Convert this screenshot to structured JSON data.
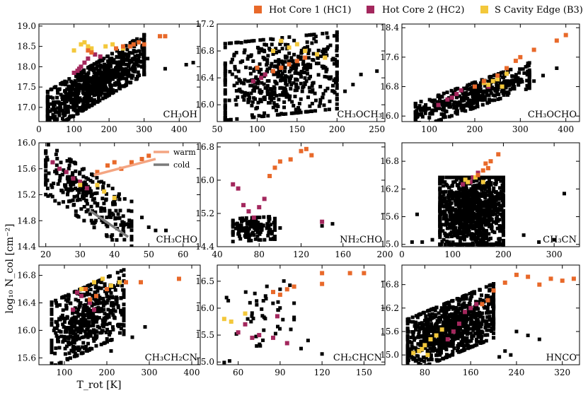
{
  "figure": {
    "ylabel": "log₁₀ N_col [cm⁻²]",
    "xlabel": "T_rot [K]",
    "legend": [
      {
        "label": "Hot Core 1 (HC1)",
        "color": "#e8692a"
      },
      {
        "label": "Hot Core 2 (HC2)",
        "color": "#a3275d"
      },
      {
        "label": "S Cavity Edge (B3)",
        "color": "#f3c83b"
      }
    ],
    "colors": {
      "bulk": "#000000",
      "hc1": "#e8692a",
      "hc2": "#a3275d",
      "b3": "#f3c83b",
      "warm": "#f4a582",
      "cold": "#7a7a7a"
    }
  },
  "chart_data": [
    {
      "type": "scatter",
      "label": "CH3OH",
      "sub": "CH₃OH",
      "xlim": [
        0,
        460
      ],
      "ylim": [
        16.65,
        19.05
      ],
      "xticks": [
        0,
        100,
        200,
        300,
        400
      ],
      "xticklabels": [
        "0",
        "100",
        "200",
        "300",
        "400"
      ],
      "yticks": [
        17.0,
        17.5,
        18.0,
        18.5,
        19.0
      ],
      "yticklabels": [
        "17.0",
        "17.5",
        "18.0",
        "18.5",
        "19.0"
      ],
      "bulk": {
        "n": 900,
        "x": [
          25,
          300
        ],
        "y": [
          16.75,
          18.45
        ],
        "corr": 0.82,
        "extra": [
          [
            420,
            18.05
          ],
          [
            440,
            18.1
          ],
          [
            360,
            17.95
          ],
          [
            310,
            18.2
          ]
        ]
      },
      "hc1": [
        [
          360,
          18.75
        ],
        [
          345,
          18.75
        ],
        [
          285,
          18.6
        ],
        [
          270,
          18.55
        ],
        [
          260,
          18.5
        ],
        [
          150,
          18.35
        ],
        [
          140,
          18.4
        ],
        [
          220,
          18.45
        ],
        [
          240,
          18.5
        ],
        [
          300,
          18.55
        ]
      ],
      "hc2": [
        [
          130,
          18.1
        ],
        [
          120,
          18.0
        ],
        [
          110,
          17.9
        ],
        [
          100,
          17.85
        ],
        [
          140,
          18.2
        ],
        [
          160,
          18.3
        ],
        [
          115,
          17.95
        ],
        [
          175,
          18.25
        ]
      ],
      "b3": [
        [
          120,
          18.55
        ],
        [
          130,
          18.6
        ],
        [
          210,
          18.55
        ],
        [
          100,
          18.4
        ],
        [
          150,
          18.45
        ],
        [
          140,
          18.5
        ],
        [
          190,
          18.5
        ],
        [
          240,
          18.45
        ]
      ]
    },
    {
      "type": "scatter",
      "label": "CH3OCH3",
      "sub": "CH₃OCH₃",
      "xlim": [
        50,
        260
      ],
      "ylim": [
        15.75,
        17.2
      ],
      "xticks": [
        50,
        100,
        150,
        200,
        250
      ],
      "xticklabels": [
        "50",
        "100",
        "150",
        "200",
        "250"
      ],
      "yticks": [
        16.0,
        16.4,
        16.8,
        17.2
      ],
      "yticklabels": [
        "16.0",
        "16.4",
        "16.8",
        "17.2"
      ],
      "bulk": {
        "n": 520,
        "x": [
          60,
          200
        ],
        "y": [
          15.85,
          17.0
        ],
        "corr": 0.15,
        "extra": [
          [
            210,
            16.2
          ],
          [
            230,
            16.45
          ],
          [
            250,
            16.5
          ],
          [
            220,
            16.3
          ]
        ]
      },
      "hc1": [
        [
          140,
          16.6
        ],
        [
          150,
          16.65
        ],
        [
          130,
          16.55
        ],
        [
          160,
          16.7
        ],
        [
          100,
          16.55
        ],
        [
          120,
          16.5
        ]
      ],
      "hc2": [
        [
          110,
          16.45
        ],
        [
          120,
          16.5
        ],
        [
          105,
          16.4
        ],
        [
          130,
          16.55
        ],
        [
          95,
          16.35
        ]
      ],
      "b3": [
        [
          130,
          16.95
        ],
        [
          140,
          16.85
        ],
        [
          160,
          16.8
        ],
        [
          175,
          16.75
        ],
        [
          150,
          16.9
        ],
        [
          120,
          16.8
        ],
        [
          185,
          16.7
        ]
      ]
    },
    {
      "type": "scatter",
      "label": "CH3OCHO",
      "sub": "CH₃OCHO",
      "xlim": [
        40,
        430
      ],
      "ylim": [
        15.85,
        18.5
      ],
      "xticks": [
        100,
        200,
        300,
        400
      ],
      "xticklabels": [
        "100",
        "200",
        "300",
        "400"
      ],
      "yticks": [
        16.0,
        16.8,
        17.6,
        18.4
      ],
      "yticklabels": [
        "16.0",
        "16.8",
        "17.6",
        "18.4"
      ],
      "bulk": {
        "n": 460,
        "x": [
          70,
          320
        ],
        "y": [
          15.9,
          17.2
        ],
        "corr": 0.85,
        "extra": [
          [
            380,
            17.3
          ],
          [
            350,
            17.1
          ],
          [
            330,
            16.95
          ]
        ]
      },
      "hc1": [
        [
          400,
          18.2
        ],
        [
          380,
          18.05
        ],
        [
          330,
          17.8
        ],
        [
          300,
          17.6
        ],
        [
          290,
          17.5
        ],
        [
          270,
          17.3
        ],
        [
          250,
          17.1
        ],
        [
          220,
          16.95
        ],
        [
          200,
          16.8
        ]
      ],
      "hc2": [
        [
          150,
          16.5
        ],
        [
          160,
          16.6
        ],
        [
          140,
          16.45
        ],
        [
          170,
          16.7
        ],
        [
          120,
          16.3
        ],
        [
          230,
          16.8
        ]
      ],
      "b3": [
        [
          220,
          16.9
        ],
        [
          240,
          16.95
        ],
        [
          250,
          17.0
        ],
        [
          270,
          17.15
        ],
        [
          230,
          16.85
        ],
        [
          260,
          16.8
        ]
      ]
    },
    {
      "type": "scatter",
      "label": "CH3CHO",
      "sub": "CH₃CHO",
      "xlim": [
        18,
        65
      ],
      "ylim": [
        14.4,
        16.0
      ],
      "xticks": [
        20,
        30,
        40,
        50,
        60
      ],
      "xticklabels": [
        "20",
        "30",
        "40",
        "50",
        "60"
      ],
      "yticks": [
        14.4,
        14.8,
        15.2,
        15.6,
        16.0
      ],
      "yticklabels": [
        "14.4",
        "14.8",
        "15.2",
        "15.6",
        "16.0"
      ],
      "bulk": {
        "n": 260,
        "x": [
          20,
          45
        ],
        "y": [
          14.55,
          15.75
        ],
        "corr": -0.75,
        "extra": [
          [
            50,
            14.7
          ],
          [
            52,
            14.65
          ],
          [
            55,
            14.65
          ],
          [
            48,
            14.85
          ],
          [
            44,
            14.75
          ]
        ]
      },
      "hc1": [
        [
          48,
          15.75
        ],
        [
          45,
          15.7
        ],
        [
          40,
          15.7
        ],
        [
          38,
          15.65
        ],
        [
          35,
          15.55
        ],
        [
          50,
          15.8
        ],
        [
          42,
          15.6
        ]
      ],
      "hc2": [
        [
          22,
          15.7
        ],
        [
          24,
          15.6
        ],
        [
          26,
          15.55
        ],
        [
          28,
          15.45
        ],
        [
          30,
          15.4
        ],
        [
          32,
          15.3
        ]
      ],
      "b3": [
        [
          37,
          15.25
        ],
        [
          40,
          15.15
        ],
        [
          35,
          15.35
        ],
        [
          30,
          15.35
        ]
      ],
      "lines": [
        {
          "name": "warm",
          "color": "#f4a582",
          "from": [
            34,
            15.5
          ],
          "to": [
            52,
            15.75
          ]
        },
        {
          "name": "cold",
          "color": "#7a7a7a",
          "from": [
            33,
            14.95
          ],
          "to": [
            44,
            14.55
          ]
        }
      ]
    },
    {
      "type": "scatter",
      "label": "NH2CHO",
      "sub": "NH₂CHO",
      "xlim": [
        40,
        200
      ],
      "ylim": [
        14.4,
        16.9
      ],
      "xticks": [
        40,
        80,
        120,
        160,
        200
      ],
      "xticklabels": [
        "40",
        "80",
        "120",
        "160",
        "200"
      ],
      "yticks": [
        14.4,
        15.2,
        16.0,
        16.8
      ],
      "yticklabels": [
        "14.4",
        "15.2",
        "16.0",
        "16.8"
      ],
      "bulk": {
        "n": 150,
        "x": [
          55,
          95
        ],
        "y": [
          14.55,
          15.1
        ],
        "corr": 0.1,
        "extra": [
          [
            140,
            14.9
          ],
          [
            150,
            14.95
          ],
          [
            100,
            14.85
          ]
        ]
      },
      "hc1": [
        [
          125,
          16.75
        ],
        [
          120,
          16.7
        ],
        [
          110,
          16.5
        ],
        [
          95,
          16.3
        ],
        [
          90,
          16.1
        ],
        [
          130,
          16.6
        ],
        [
          100,
          16.45
        ]
      ],
      "hc2": [
        [
          55,
          15.9
        ],
        [
          60,
          15.8
        ],
        [
          65,
          15.4
        ],
        [
          70,
          15.25
        ],
        [
          75,
          15.1
        ],
        [
          80,
          15.35
        ],
        [
          140,
          15.0
        ],
        [
          85,
          15.55
        ]
      ],
      "b3": []
    },
    {
      "type": "scatter",
      "label": "CH3CN",
      "sub": "CH₃CN",
      "xlim": [
        0,
        350
      ],
      "ylim": [
        14.95,
        17.2
      ],
      "xticks": [
        0,
        100,
        200,
        300
      ],
      "xticklabels": [
        "0",
        "100",
        "200",
        "300"
      ],
      "yticks": [
        15.0,
        15.6,
        16.2,
        16.8
      ],
      "yticklabels": [
        "15.0",
        "15.6",
        "16.2",
        "16.8"
      ],
      "bulk": {
        "n": 1100,
        "x": [
          75,
          200
        ],
        "y": [
          15.0,
          16.45
        ],
        "corr": 0.0,
        "extra": [
          [
            20,
            15.05
          ],
          [
            40,
            15.05
          ],
          [
            60,
            15.1
          ],
          [
            30,
            15.65
          ],
          [
            320,
            16.1
          ],
          [
            240,
            15.2
          ],
          [
            270,
            15.05
          ],
          [
            300,
            15.1
          ]
        ]
      },
      "hc1": [
        [
          190,
          16.95
        ],
        [
          175,
          16.8
        ],
        [
          165,
          16.75
        ],
        [
          160,
          16.6
        ],
        [
          150,
          16.5
        ],
        [
          170,
          16.65
        ]
      ],
      "hc2": [
        [
          140,
          16.45
        ],
        [
          135,
          16.35
        ],
        [
          120,
          16.3
        ],
        [
          150,
          16.55
        ]
      ],
      "b3": [
        [
          130,
          16.35
        ],
        [
          145,
          16.45
        ],
        [
          160,
          16.35
        ],
        [
          125,
          16.4
        ]
      ]
    },
    {
      "type": "scatter",
      "label": "CH3CH2CN",
      "sub": "CH₃CH₂CN",
      "xlim": [
        40,
        420
      ],
      "ylim": [
        15.5,
        16.95
      ],
      "xticks": [
        100,
        200,
        300,
        400
      ],
      "xticklabels": [
        "100",
        "200",
        "300",
        "400"
      ],
      "yticks": [
        15.6,
        16.0,
        16.4,
        16.8
      ],
      "yticklabels": [
        "15.6",
        "16.0",
        "16.4",
        "16.8"
      ],
      "bulk": {
        "n": 520,
        "x": [
          70,
          240
        ],
        "y": [
          15.65,
          16.7
        ],
        "corr": 0.45,
        "extra": [
          [
            290,
            16.05
          ],
          [
            260,
            15.9
          ],
          [
            210,
            15.7
          ]
        ]
      },
      "hc1": [
        [
          370,
          16.75
        ],
        [
          280,
          16.7
        ],
        [
          245,
          16.7
        ],
        [
          200,
          16.6
        ],
        [
          175,
          16.5
        ],
        [
          160,
          16.45
        ],
        [
          150,
          16.6
        ]
      ],
      "hc2": [
        [
          130,
          16.55
        ],
        [
          140,
          16.5
        ],
        [
          160,
          16.4
        ],
        [
          120,
          16.3
        ],
        [
          170,
          16.3
        ]
      ],
      "b3": [
        [
          190,
          16.75
        ],
        [
          170,
          16.7
        ],
        [
          210,
          16.65
        ],
        [
          230,
          16.7
        ],
        [
          140,
          16.6
        ]
      ]
    },
    {
      "type": "scatter",
      "label": "CH2CHCN",
      "sub": "CH₂CHCN",
      "xlim": [
        45,
        165
      ],
      "ylim": [
        14.95,
        16.8
      ],
      "xticks": [
        60,
        90,
        120,
        150
      ],
      "xticklabels": [
        "60",
        "90",
        "120",
        "150"
      ],
      "yticks": [
        15.0,
        15.5,
        16.0,
        16.5
      ],
      "yticklabels": [
        "15.0",
        "15.5",
        "16.0",
        "16.5"
      ],
      "bulk": {
        "n": 45,
        "x": [
          50,
          100
        ],
        "y": [
          15.15,
          16.4
        ],
        "corr": 0.3,
        "extra": [
          [
            110,
            15.4
          ],
          [
            105,
            15.25
          ],
          [
            120,
            15.15
          ]
        ]
      },
      "hc1": [
        [
          150,
          16.65
        ],
        [
          140,
          16.65
        ],
        [
          120,
          16.65
        ],
        [
          120,
          16.45
        ],
        [
          100,
          16.4
        ],
        [
          95,
          16.35
        ],
        [
          90,
          16.25
        ],
        [
          85,
          16.3
        ]
      ],
      "hc2": [
        [
          70,
          15.45
        ],
        [
          75,
          15.5
        ],
        [
          85,
          15.45
        ],
        [
          95,
          15.35
        ],
        [
          65,
          15.7
        ],
        [
          60,
          15.55
        ],
        [
          88,
          15.85
        ]
      ],
      "b3": [
        [
          50,
          15.8
        ],
        [
          55,
          15.75
        ],
        [
          65,
          15.9
        ]
      ]
    },
    {
      "type": "scatter",
      "label": "HNCO",
      "sub": "HNCO",
      "xlim": [
        40,
        350
      ],
      "ylim": [
        14.75,
        17.3
      ],
      "xticks": [
        80,
        160,
        240,
        320
      ],
      "xticklabels": [
        "80",
        "160",
        "240",
        "320"
      ],
      "yticks": [
        15.0,
        15.6,
        16.2,
        16.8
      ],
      "yticklabels": [
        "15.0",
        "15.6",
        "16.2",
        "16.8"
      ],
      "bulk": {
        "n": 900,
        "x": [
          50,
          200
        ],
        "y": [
          14.85,
          16.5
        ],
        "corr": 0.55,
        "extra": [
          [
            240,
            15.6
          ],
          [
            260,
            15.5
          ],
          [
            280,
            15.4
          ],
          [
            230,
            15.0
          ],
          [
            220,
            15.1
          ],
          [
            210,
            14.95
          ]
        ]
      },
      "hc1": [
        [
          340,
          16.95
        ],
        [
          320,
          16.9
        ],
        [
          300,
          16.95
        ],
        [
          280,
          16.8
        ],
        [
          260,
          17.0
        ],
        [
          240,
          17.05
        ],
        [
          220,
          16.85
        ],
        [
          200,
          16.65
        ],
        [
          190,
          16.4
        ],
        [
          180,
          16.3
        ]
      ],
      "hc2": [
        [
          150,
          16.1
        ],
        [
          160,
          16.2
        ],
        [
          140,
          15.8
        ],
        [
          170,
          16.3
        ],
        [
          130,
          15.6
        ],
        [
          120,
          15.4
        ]
      ],
      "b3": [
        [
          70,
          15.1
        ],
        [
          75,
          15.15
        ],
        [
          80,
          15.25
        ],
        [
          90,
          15.4
        ],
        [
          100,
          15.5
        ],
        [
          110,
          15.65
        ],
        [
          85,
          15.0
        ],
        [
          60,
          15.05
        ]
      ]
    }
  ]
}
